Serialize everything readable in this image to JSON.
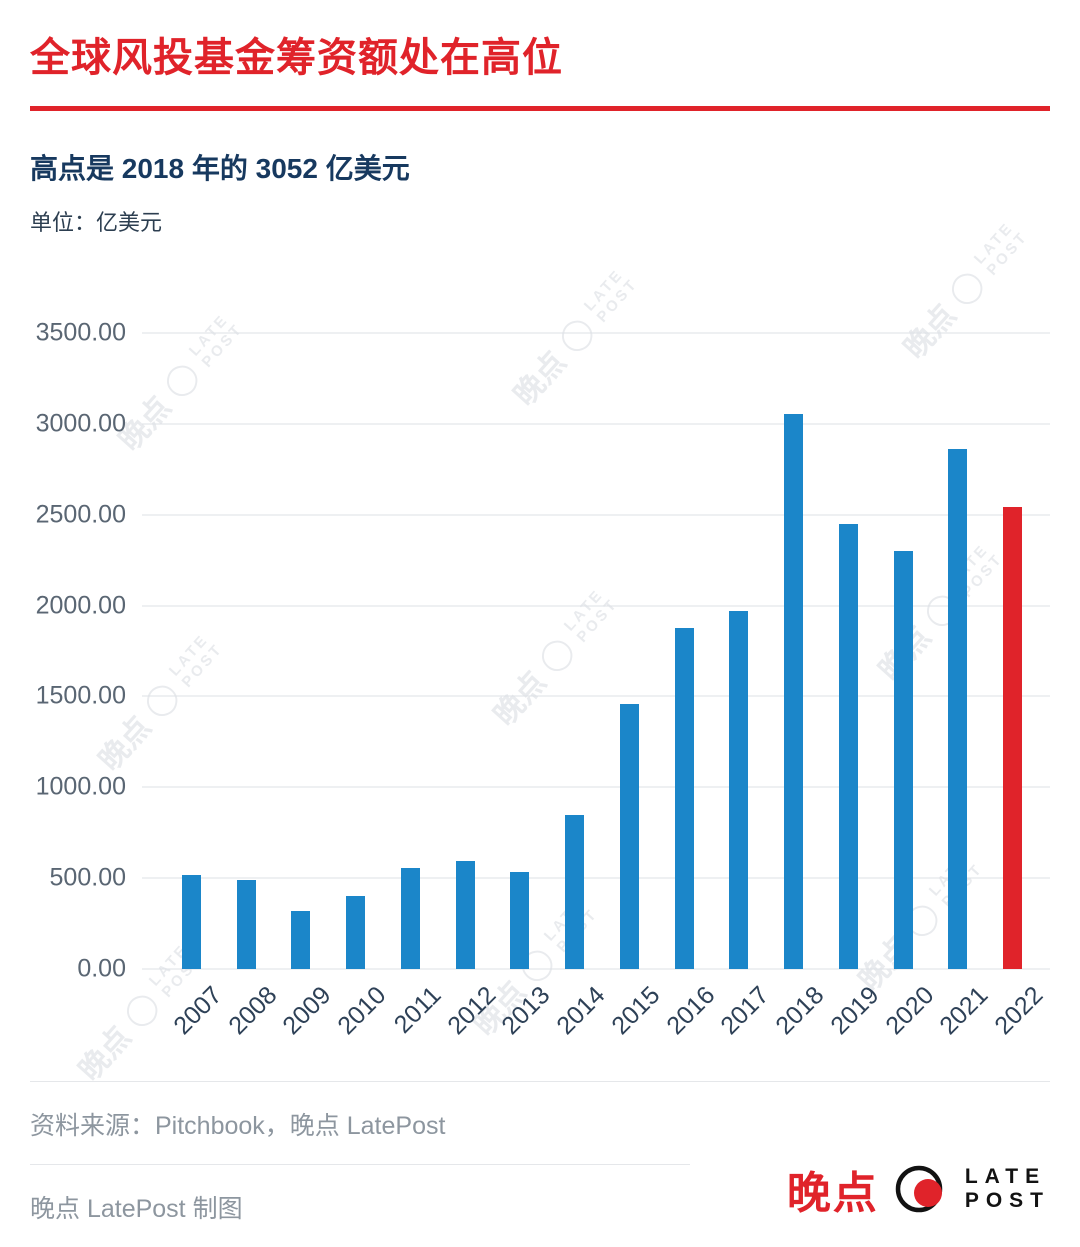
{
  "header": {
    "title": "全球风投基金筹资额处在高位",
    "subtitle": "高点是 2018 年的 3052 亿美元",
    "unit_label": "单位：亿美元"
  },
  "chart_data": {
    "type": "bar",
    "categories": [
      "2007",
      "2008",
      "2009",
      "2010",
      "2011",
      "2012",
      "2013",
      "2014",
      "2015",
      "2016",
      "2017",
      "2018",
      "2019",
      "2020",
      "2021",
      "2022"
    ],
    "values": [
      520,
      490,
      320,
      400,
      555,
      595,
      535,
      850,
      1460,
      1875,
      1970,
      3052,
      2450,
      2300,
      2860,
      2540
    ],
    "title": "全球风投基金筹资额处在高位",
    "xlabel": "",
    "ylabel": "亿美元",
    "ylim": [
      0,
      3500
    ],
    "yticks": [
      "3500.00",
      "3000.00",
      "2500.00",
      "2000.00",
      "1500.00",
      "1000.00",
      "500.00",
      "0.00"
    ],
    "grid": true,
    "legend": "none",
    "bar_colors": {
      "default": "#1b86c9",
      "highlight": "#e0232a"
    },
    "highlight_category": "2022"
  },
  "watermark": {
    "cn": "晚点",
    "circle": "◯",
    "line1": "LATE",
    "line2": "POST"
  },
  "footer": {
    "source": "资料来源：Pitchbook，晚点 LatePost",
    "credit": "晚点 LatePost 制图",
    "logo": {
      "cn": "晚点",
      "line1": "LATE",
      "line2": "POST"
    }
  },
  "colors": {
    "accent_red": "#e0232a",
    "bar_blue": "#1b86c9",
    "navy_text": "#17395f",
    "grid": "#dde0e5",
    "footer_text": "#8d969f",
    "watermark": "#e9ebee"
  }
}
